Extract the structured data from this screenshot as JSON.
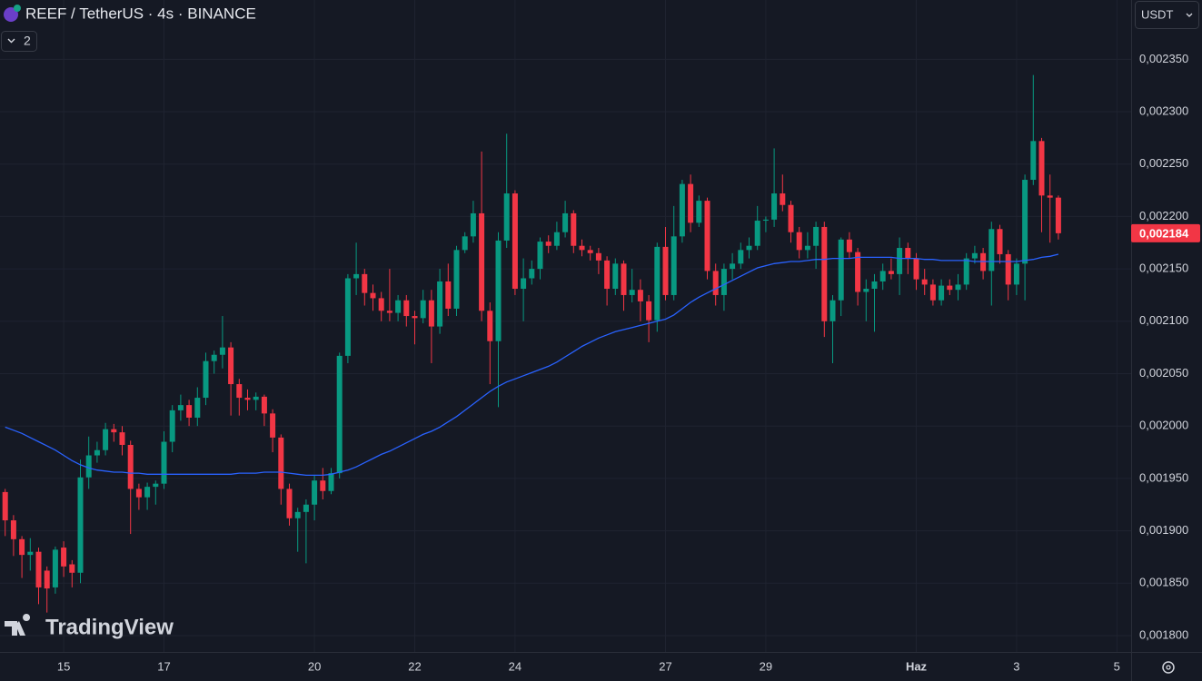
{
  "chart_data": {
    "type": "candlestick",
    "title": "REEF / TetherUS · 4s · BINANCE",
    "indicator_count": "2",
    "currency": "USDT",
    "brand": "TradingView",
    "up_color": "#089981",
    "down_color": "#f23645",
    "grid": true,
    "categories": [
      null,
      null,
      null,
      null,
      null,
      null,
      null,
      "15",
      null,
      null,
      null,
      null,
      null,
      null,
      null,
      null,
      null,
      null,
      null,
      "17",
      null,
      null,
      null,
      null,
      null,
      null,
      null,
      null,
      null,
      null,
      null,
      null,
      null,
      null,
      null,
      null,
      null,
      "20",
      null,
      null,
      null,
      null,
      null,
      null,
      null,
      null,
      null,
      null,
      null,
      "22",
      null,
      null,
      null,
      null,
      null,
      null,
      null,
      null,
      null,
      null,
      null,
      "24",
      null,
      null,
      null,
      null,
      null,
      null,
      null,
      null,
      null,
      null,
      null,
      null,
      null,
      null,
      null,
      null,
      null,
      "27",
      null,
      null,
      null,
      null,
      null,
      null,
      null,
      null,
      null,
      null,
      null,
      "29",
      null,
      null,
      null,
      null,
      null,
      null,
      null,
      null,
      null,
      null,
      null,
      null,
      null,
      null,
      null,
      null,
      null,
      "Haz",
      null,
      null,
      null,
      null,
      null,
      null,
      null,
      null,
      null,
      null,
      null,
      "3",
      null,
      null,
      null,
      null,
      null,
      null,
      null,
      null,
      null,
      null,
      null,
      "5"
    ],
    "open": [
      0.001937,
      0.00191,
      0.001892,
      0.001877,
      0.00188,
      0.001862,
      0.001846,
      0.001884,
      0.001868,
      0.00186,
      0.001951,
      0.001972,
      0.001977,
      0.001997,
      0.001994,
      0.001982,
      0.00194,
      0.001932,
      0.001942,
      0.001945,
      0.001985,
      0.002015,
      0.00202,
      0.002008,
      0.002027,
      0.002062,
      0.002068,
      0.002075,
      0.00204,
      0.002027,
      0.002025,
      0.002028,
      0.002012,
      0.001989,
      0.00194,
      0.001912,
      0.001918,
      0.001925,
      0.001948,
      0.001938,
      0.001955,
      0.002067,
      0.002141,
      0.002145,
      0.002127,
      0.002122,
      0.00211,
      0.002108,
      0.00212,
      0.002105,
      0.002103,
      0.00212,
      0.002095,
      0.002138,
      0.002112,
      0.002168,
      0.002181,
      0.002203,
      0.00211,
      0.002081,
      0.002177,
      0.002222,
      0.002131,
      0.002141,
      0.00215,
      0.002176,
      0.002172,
      0.002185,
      0.002203,
      0.002172,
      0.002168,
      0.002165,
      0.002158,
      0.002131,
      0.002155,
      0.002125,
      0.00213,
      0.002119,
      0.002101,
      0.002171,
      0.002125,
      0.002181,
      0.002231,
      0.002194,
      0.002215,
      0.002148,
      0.002125,
      0.00215,
      0.002155,
      0.002168,
      0.002172,
      0.002196,
      0.002197,
      0.002222,
      0.002211,
      0.002185,
      0.002168,
      0.002172,
      0.00219,
      0.0021,
      0.00212,
      0.002178,
      0.002166,
      0.002128,
      0.002131,
      0.002138,
      0.002148,
      0.002145,
      0.00217,
      0.00216,
      0.00214,
      0.002135,
      0.00212,
      0.002134,
      0.00213,
      0.002135,
      0.00216,
      0.002165,
      0.002148,
      0.002188,
      0.002164,
      0.002135,
      0.002155,
      0.002235,
      0.002272,
      0.00222,
      0.002218,
      null,
      null,
      null,
      null,
      null,
      null,
      null
    ],
    "high": [
      0.00194,
      0.001915,
      0.001895,
      0.001893,
      0.001884,
      0.001866,
      0.001885,
      0.00189,
      0.001872,
      0.001968,
      0.00199,
      0.001985,
      0.002003,
      0.002002,
      0.002,
      0.001986,
      0.001945,
      0.001946,
      0.001948,
      0.001995,
      0.00202,
      0.00203,
      0.002025,
      0.002037,
      0.00207,
      0.002072,
      0.002105,
      0.00208,
      0.002045,
      0.002035,
      0.002032,
      0.00203,
      0.002016,
      0.001992,
      0.001945,
      0.001922,
      0.00193,
      0.001953,
      0.00196,
      0.00196,
      0.00207,
      0.002145,
      0.002175,
      0.00215,
      0.002135,
      0.002128,
      0.00215,
      0.002125,
      0.002125,
      0.00211,
      0.00213,
      0.00213,
      0.00215,
      0.002155,
      0.002172,
      0.002185,
      0.002215,
      0.002262,
      0.002118,
      0.002185,
      0.002279,
      0.002225,
      0.00216,
      0.002158,
      0.00218,
      0.002182,
      0.002195,
      0.002215,
      0.002206,
      0.002178,
      0.002172,
      0.00217,
      0.002162,
      0.00216,
      0.002158,
      0.00215,
      0.00214,
      0.002125,
      0.002175,
      0.00219,
      0.00221,
      0.002235,
      0.00224,
      0.00222,
      0.002218,
      0.002155,
      0.002155,
      0.002165,
      0.002175,
      0.00218,
      0.00221,
      0.0022,
      0.002265,
      0.00224,
      0.002215,
      0.00219,
      0.002185,
      0.002195,
      0.002195,
      0.002125,
      0.00218,
      0.002185,
      0.00217,
      0.00214,
      0.002145,
      0.002155,
      0.00216,
      0.00218,
      0.002175,
      0.002165,
      0.00215,
      0.00214,
      0.00214,
      0.00214,
      0.002145,
      0.002165,
      0.002172,
      0.00217,
      0.002195,
      0.002192,
      0.002168,
      0.00216,
      0.00224,
      0.002335,
      0.002275,
      0.00224,
      0.00222,
      null,
      null,
      null,
      null,
      null,
      null,
      null
    ],
    "low": [
      0.001895,
      0.001876,
      0.001855,
      0.001862,
      0.00183,
      0.001822,
      0.00184,
      0.001856,
      0.001846,
      0.00185,
      0.00194,
      0.001965,
      0.001972,
      0.001985,
      0.001972,
      0.001897,
      0.00192,
      0.00192,
      0.001925,
      0.00194,
      0.001975,
      0.002005,
      0.002,
      0.002,
      0.00202,
      0.00205,
      0.002055,
      0.00201,
      0.00201,
      0.002015,
      0.002015,
      0.002,
      0.001975,
      0.001925,
      0.001905,
      0.00188,
      0.001869,
      0.00191,
      0.00193,
      0.001935,
      0.00195,
      0.00206,
      0.002125,
      0.002115,
      0.00211,
      0.0021,
      0.0021,
      0.0021,
      0.002095,
      0.002078,
      0.002098,
      0.00206,
      0.002088,
      0.002105,
      0.002105,
      0.002165,
      0.002175,
      0.0021,
      0.00204,
      0.002018,
      0.00217,
      0.002125,
      0.0021,
      0.002135,
      0.00214,
      0.002165,
      0.002168,
      0.00218,
      0.002165,
      0.002162,
      0.002158,
      0.002145,
      0.002115,
      0.002125,
      0.00211,
      0.002118,
      0.0021,
      0.00208,
      0.00209,
      0.00212,
      0.00212,
      0.002175,
      0.002185,
      0.00219,
      0.00214,
      0.002115,
      0.00211,
      0.00214,
      0.00215,
      0.00216,
      0.002168,
      0.002185,
      0.00219,
      0.002205,
      0.002175,
      0.00216,
      0.00216,
      0.00215,
      0.002085,
      0.00206,
      0.002105,
      0.00216,
      0.002115,
      0.0021,
      0.00209,
      0.00213,
      0.00214,
      0.002125,
      0.002145,
      0.00213,
      0.002125,
      0.002115,
      0.002115,
      0.002125,
      0.00212,
      0.00213,
      0.002155,
      0.00214,
      0.002115,
      0.002155,
      0.00212,
      0.002125,
      0.00212,
      0.00223,
      0.002185,
      0.002175,
      0.002178,
      null,
      null,
      null,
      null,
      null,
      null,
      null
    ],
    "close": [
      0.00191,
      0.001892,
      0.001877,
      0.00188,
      0.001846,
      0.001845,
      0.001882,
      0.001866,
      0.00186,
      0.001951,
      0.001972,
      0.001977,
      0.001997,
      0.001994,
      0.001982,
      0.00194,
      0.001932,
      0.001942,
      0.001945,
      0.001985,
      0.002015,
      0.00202,
      0.002008,
      0.002027,
      0.002062,
      0.002068,
      0.002075,
      0.00204,
      0.002027,
      0.002025,
      0.002028,
      0.002012,
      0.001989,
      0.00194,
      0.001912,
      0.001918,
      0.001925,
      0.001948,
      0.001938,
      0.001955,
      0.002067,
      0.002141,
      0.002145,
      0.002127,
      0.002122,
      0.00211,
      0.002108,
      0.00212,
      0.002105,
      0.002103,
      0.00212,
      0.002095,
      0.002138,
      0.002112,
      0.002168,
      0.002181,
      0.002203,
      0.00211,
      0.002081,
      0.002177,
      0.002222,
      0.002131,
      0.002141,
      0.00215,
      0.002176,
      0.002172,
      0.002185,
      0.002203,
      0.002172,
      0.002168,
      0.002165,
      0.002158,
      0.002131,
      0.002155,
      0.002125,
      0.00213,
      0.002119,
      0.002101,
      0.002171,
      0.002125,
      0.002181,
      0.002231,
      0.002194,
      0.002215,
      0.002148,
      0.002125,
      0.00215,
      0.002155,
      0.002168,
      0.002172,
      0.002196,
      0.002197,
      0.002222,
      0.002211,
      0.002185,
      0.002168,
      0.002172,
      0.00219,
      0.0021,
      0.00212,
      0.002178,
      0.002166,
      0.002128,
      0.002131,
      0.002138,
      0.002148,
      0.002145,
      0.00217,
      0.00216,
      0.00214,
      0.002135,
      0.00212,
      0.002134,
      0.00213,
      0.002135,
      0.00216,
      0.002165,
      0.002148,
      0.002188,
      0.002164,
      0.002135,
      0.002155,
      0.002235,
      0.002272,
      0.00222,
      0.002218,
      0.002184,
      null,
      null,
      null,
      null,
      null,
      null,
      null
    ],
    "ma": {
      "color": "#2962ff",
      "values": [
        0.001999,
        0.001996,
        0.001993,
        0.001989,
        0.001985,
        0.001981,
        0.001977,
        0.001972,
        0.001967,
        0.001963,
        0.00196,
        0.001958,
        0.001957,
        0.001956,
        0.001956,
        0.001955,
        0.001955,
        0.001954,
        0.001954,
        0.001954,
        0.001954,
        0.001954,
        0.001954,
        0.001954,
        0.001954,
        0.001954,
        0.001954,
        0.001954,
        0.001955,
        0.001955,
        0.001955,
        0.001956,
        0.001956,
        0.001956,
        0.001955,
        0.001954,
        0.001953,
        0.001953,
        0.001953,
        0.001954,
        0.001956,
        0.001958,
        0.001961,
        0.001965,
        0.001969,
        0.001973,
        0.001976,
        0.00198,
        0.001984,
        0.001988,
        0.001992,
        0.001995,
        0.001999,
        0.002004,
        0.002009,
        0.002015,
        0.002021,
        0.002027,
        0.002033,
        0.002038,
        0.002042,
        0.002045,
        0.002048,
        0.002051,
        0.002054,
        0.002057,
        0.002061,
        0.002066,
        0.002071,
        0.002076,
        0.00208,
        0.002084,
        0.002087,
        0.00209,
        0.002092,
        0.002094,
        0.002096,
        0.002098,
        0.0021,
        0.002102,
        0.002106,
        0.002112,
        0.002118,
        0.002123,
        0.002127,
        0.002131,
        0.002135,
        0.002139,
        0.002143,
        0.002147,
        0.002151,
        0.002153,
        0.002155,
        0.002156,
        0.002157,
        0.002157,
        0.002158,
        0.002159,
        0.002159,
        0.00216,
        0.00216,
        0.00216,
        0.002161,
        0.002161,
        0.002161,
        0.002161,
        0.002161,
        0.00216,
        0.00216,
        0.00216,
        0.002159,
        0.002159,
        0.002158,
        0.002158,
        0.002158,
        0.002158,
        0.002157,
        0.002157,
        0.002157,
        0.002157,
        0.002157,
        0.002157,
        0.002158,
        0.002159,
        0.002161,
        0.002162,
        0.002164,
        null,
        null,
        null,
        null,
        null,
        null,
        null
      ]
    },
    "ylim": [
      0.0017844,
      0.0024066
    ],
    "yticks": [
      {
        "value": 0.0018,
        "label": "0,001800"
      },
      {
        "value": 0.00185,
        "label": "0,001850"
      },
      {
        "value": 0.0019,
        "label": "0,001900"
      },
      {
        "value": 0.00195,
        "label": "0,001950"
      },
      {
        "value": 0.002,
        "label": "0,002000"
      },
      {
        "value": 0.00205,
        "label": "0,002050"
      },
      {
        "value": 0.0021,
        "label": "0,002100"
      },
      {
        "value": 0.00215,
        "label": "0,002150"
      },
      {
        "value": 0.0022,
        "label": "0,002200"
      },
      {
        "value": 0.00225,
        "label": "0,002250"
      },
      {
        "value": 0.0023,
        "label": "0,002300"
      },
      {
        "value": 0.00235,
        "label": "0,002350"
      }
    ],
    "last_price": {
      "value": 0.002184,
      "label": "0,002184"
    }
  }
}
